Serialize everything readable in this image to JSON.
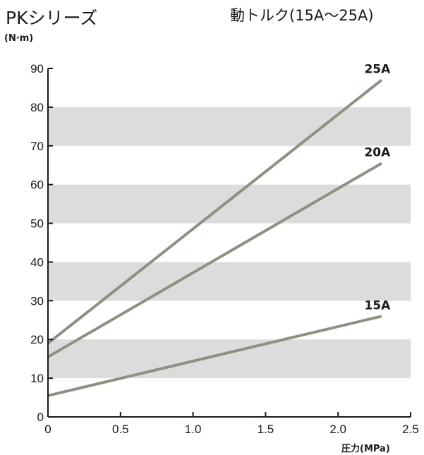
{
  "header": {
    "series_title": "PKシリーズ",
    "chart_title": "動トルク(15A〜25A)"
  },
  "chart_data": {
    "type": "line",
    "title": "動トルク(15A〜25A)",
    "ylabel": "(N·m)",
    "xlabel": "圧力(MPa)",
    "xlim": [
      0,
      2.5
    ],
    "ylim": [
      0,
      90
    ],
    "x_ticks": [
      "0",
      "0.5",
      "1.0",
      "1.5",
      "2.0",
      "2.5"
    ],
    "y_ticks": [
      "0",
      "10",
      "20",
      "30",
      "40",
      "50",
      "60",
      "70",
      "80",
      "90"
    ],
    "grid": "alternating horizontal bands",
    "band_color": "#dcdcdd",
    "line_color": "#8c9182",
    "series": [
      {
        "name": "25A",
        "x": [
          0,
          2.3
        ],
        "y": [
          19,
          87
        ]
      },
      {
        "name": "20A",
        "x": [
          0,
          2.3
        ],
        "y": [
          15.5,
          65.5
        ]
      },
      {
        "name": "15A",
        "x": [
          0,
          2.3
        ],
        "y": [
          5.5,
          26
        ]
      }
    ]
  }
}
